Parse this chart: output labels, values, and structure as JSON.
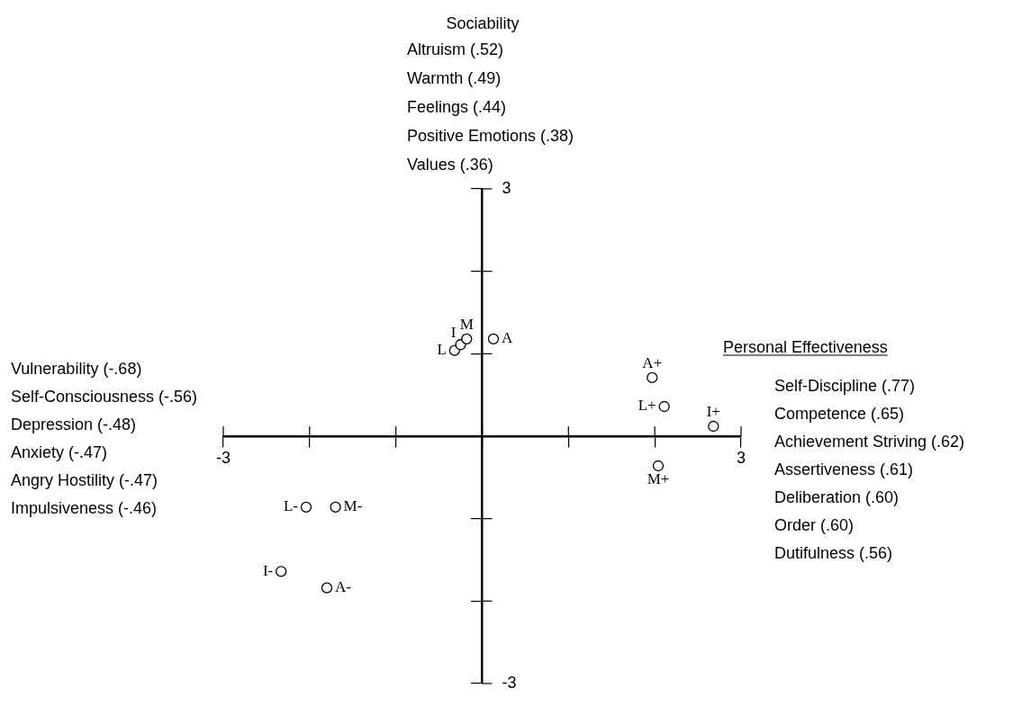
{
  "chart_data": {
    "type": "scatter",
    "x": [
      -0.32,
      -0.25,
      -0.18,
      0.13,
      1.97,
      2.11,
      2.68,
      2.04,
      -2.04,
      -1.7,
      -2.33,
      -1.8
    ],
    "values": [
      1.04,
      1.11,
      1.18,
      1.18,
      0.71,
      0.36,
      0.12,
      -0.36,
      -0.86,
      -0.86,
      -1.64,
      -1.84
    ],
    "value_labels": [
      "L",
      "I",
      "M",
      "A",
      "A+",
      "L+",
      "I+",
      "M+",
      "L-",
      "M-",
      "I-",
      "A-"
    ],
    "color": "#000000",
    "marker": "circle",
    "legend": false,
    "xlim": [
      -3,
      3
    ],
    "ylim": [
      -3,
      3
    ],
    "xticks": [
      {
        "value": -3,
        "label": "-3"
      },
      {
        "value": -2,
        "label": null
      },
      {
        "value": -1,
        "label": null
      },
      {
        "value": 0,
        "label": null
      },
      {
        "value": 1,
        "label": null
      },
      {
        "value": 2,
        "label": null
      },
      {
        "value": 3,
        "label": "3"
      }
    ],
    "yticks": [
      {
        "value": -3,
        "label": "-3"
      },
      {
        "value": -2,
        "label": null
      },
      {
        "value": -1,
        "label": null
      },
      {
        "value": 0,
        "label": null
      },
      {
        "value": 1,
        "label": null
      },
      {
        "value": 2,
        "label": null
      },
      {
        "value": 3,
        "label": "3"
      }
    ],
    "annotations": [
      "Sociability",
      "Personal Effectiveness",
      "Altruism (.52)\nWarmth (.49)\nFeelings (.44)\nPositive Emotions (.38)\nValues (.36)",
      "Vulnerability (-.68)\nSelf-Consciousness (-.56)\nDepression (-.48)\nAnxiety (-.47)\nAngry Hostility (-.47)\nImpulsiveness (-.46)",
      "Self-Discipline (.77)\nCompetence (.65)\nAchievement Striving (.62)\nAssertiveness (.61)\nDeliberation (.60)\nOrder (.60)\nDutifulness (.56)"
    ]
  }
}
